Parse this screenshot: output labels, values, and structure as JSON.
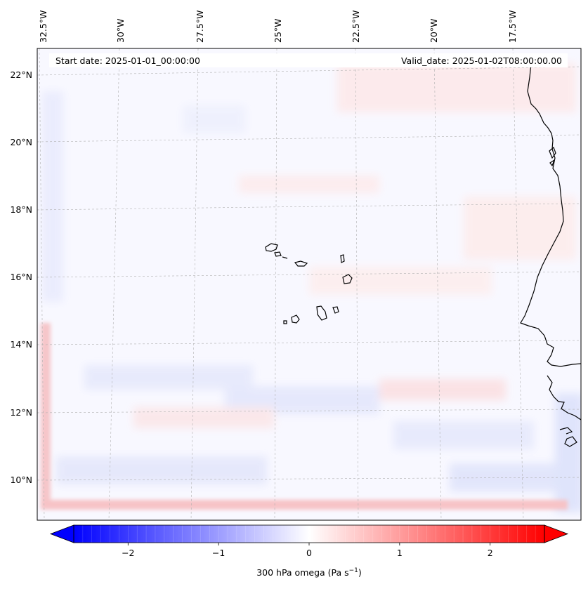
{
  "map": {
    "start_date": "Start date: 2025-01-01_00:00:00",
    "valid_date": "Valid_date: 2025-01-02T08:00:00.00",
    "lon_labels": [
      "32.5°W",
      "30°W",
      "27.5°W",
      "25°W",
      "22.5°W",
      "20°W",
      "17.5°W"
    ],
    "lat_labels": [
      "22°N",
      "20°N",
      "18°N",
      "16°N",
      "14°N",
      "12°N",
      "10°N"
    ]
  },
  "colorbar": {
    "ticks": [
      "−2",
      "−1",
      "0",
      "1",
      "2"
    ],
    "tick_values": [
      -2,
      -1,
      0,
      1,
      2
    ],
    "range": [
      -2.6,
      2.6
    ],
    "label_main": "300 hPa omega (Pa s",
    "label_sup": "−1",
    "label_close": ")",
    "color_min": "#0000ff",
    "color_mid": "#ffffff",
    "color_max": "#ff0000"
  }
}
